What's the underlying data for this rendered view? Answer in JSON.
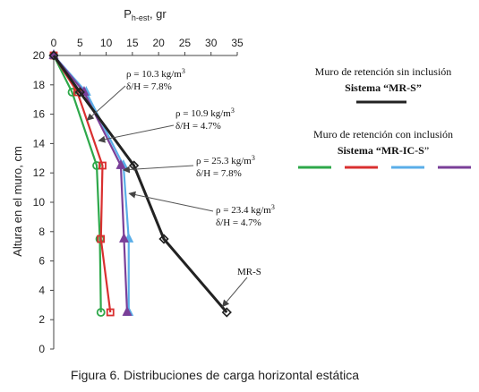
{
  "chart_data": {
    "type": "line",
    "xlabel_main": "P",
    "xlabel_sub": "h-est",
    "xlabel_unit": ", gr",
    "ylabel": "Altura en el muro, cm",
    "xlim": [
      0,
      35
    ],
    "ylim": [
      0,
      20
    ],
    "xticks": [
      0,
      5,
      10,
      15,
      20,
      25,
      30,
      35
    ],
    "yticks": [
      0,
      2,
      4,
      6,
      8,
      10,
      12,
      14,
      16,
      18,
      20
    ],
    "x_axis_position": "top",
    "grid": false,
    "series": [
      {
        "name": "MR-S",
        "color": "#222222",
        "marker": "diamond",
        "points": [
          [
            0,
            20
          ],
          [
            5,
            17.5
          ],
          [
            15.3,
            12.5
          ],
          [
            21,
            7.5
          ],
          [
            33,
            2.5
          ]
        ]
      },
      {
        "color": "#2ea84a",
        "marker": "circle",
        "points": [
          [
            0,
            20
          ],
          [
            3.5,
            17.5
          ],
          [
            8.2,
            12.5
          ],
          [
            8.8,
            7.5
          ],
          [
            9,
            2.5
          ]
        ]
      },
      {
        "color": "#d93030",
        "marker": "square",
        "points": [
          [
            0,
            20
          ],
          [
            4.5,
            17.5
          ],
          [
            9.3,
            12.5
          ],
          [
            9,
            7.5
          ],
          [
            10.8,
            2.5
          ]
        ]
      },
      {
        "color": "#5aaee8",
        "marker": "triangle",
        "points": [
          [
            0,
            20
          ],
          [
            6.2,
            17.5
          ],
          [
            13.3,
            12.5
          ],
          [
            14.3,
            7.5
          ],
          [
            14.3,
            2.5
          ]
        ]
      },
      {
        "color": "#7a3f98",
        "marker": "triangle",
        "points": [
          [
            0,
            20
          ],
          [
            5.8,
            17.5
          ],
          [
            12.8,
            12.5
          ],
          [
            13.4,
            7.5
          ],
          [
            14,
            2.5
          ]
        ]
      }
    ],
    "annotations": [
      {
        "line1": "ρ = 10.3 kg/m",
        "sup": "3",
        "line2": "δ/H = 7.8%",
        "arrow_to": [
          6.4,
          15.6
        ]
      },
      {
        "line1": "ρ = 10.9 kg/m",
        "sup": "3",
        "line2": "δ/H = 4.7%",
        "arrow_to": [
          8.6,
          14.2
        ]
      },
      {
        "line1": "ρ = 25.3 kg/m",
        "sup": "3",
        "line2": "δ/H = 7.8%",
        "arrow_to": [
          13.3,
          12.2
        ]
      },
      {
        "line1": "ρ = 23.4 kg/m",
        "sup": "3",
        "line2": "δ/H = 4.7%",
        "arrow_to": [
          14.4,
          10.6
        ]
      },
      {
        "line1": "MR-S",
        "sup": "",
        "line2": "",
        "arrow_to": [
          32.2,
          2.9
        ]
      }
    ]
  },
  "legend": {
    "group1_line1": "Muro de retención sin inclusión",
    "group1_line2": "Sistema “MR-S”",
    "group1_color": "#222222",
    "group2_line1": "Muro de retención con inclusión",
    "group2_line2_bold": "Sistema “MR-IC-S",
    "group2_line2_rest": "”",
    "group2_colors": [
      "#2ea84a",
      "#d93030",
      "#5aaee8",
      "#7a3f98"
    ]
  },
  "caption": "Figura 6. Distribuciones de carga horizontal estática"
}
